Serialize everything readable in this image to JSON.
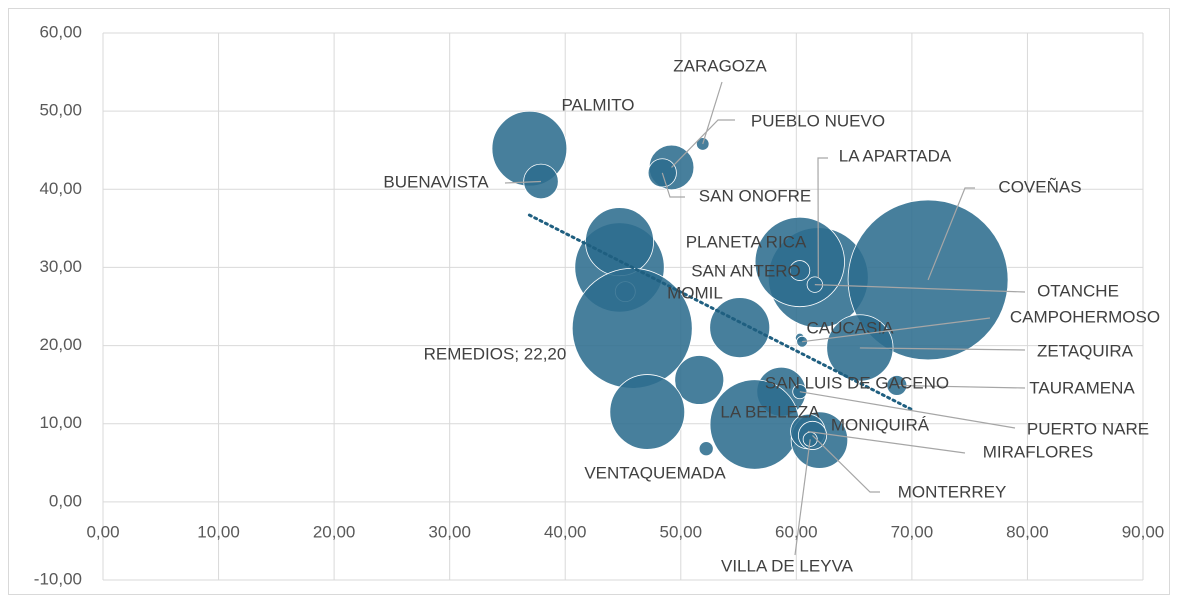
{
  "chart_data": {
    "type": "bubble",
    "color": "#2e6d8e",
    "x": [
      36.9,
      37.9,
      51.9,
      49.2,
      48.4,
      61.9,
      60.3,
      60.3,
      61.6,
      71.4,
      44.7,
      44.7,
      45.2,
      45.8,
      55.1,
      60.3,
      60.5,
      65.5,
      68.7,
      58.7,
      60.3,
      51.6,
      47.1,
      52.2,
      56.4,
      62.0,
      61.0,
      61.4,
      61.2
    ],
    "values": [
      45.2,
      41.0,
      45.8,
      42.8,
      42.1,
      28.7,
      30.7,
      29.6,
      27.8,
      28.4,
      30.0,
      33.3,
      26.9,
      22.2,
      22.3,
      21.0,
      20.5,
      19.7,
      14.9,
      14.1,
      14.1,
      15.6,
      11.5,
      6.8,
      9.9,
      7.9,
      9.0,
      8.5,
      8.0
    ],
    "sizes": [
      14,
      3,
      0.4,
      5,
      2,
      25,
      20,
      1,
      0.6,
      64,
      20,
      11.6,
      1,
      36,
      9,
      0.2,
      0.3,
      11,
      1,
      6,
      0.5,
      6,
      14,
      0.5,
      20,
      8,
      3,
      2,
      0.5
    ],
    "labels": [
      "PALMITO",
      "BUENAVISTA",
      "ZARAGOZA",
      "PUEBLO NUEVO",
      "SAN ONOFRE",
      "LA APARTADA",
      "PLANETA RICA",
      "SAN ANTERO",
      "OTANCHE",
      "COVEÑAS",
      null,
      null,
      "MOMIL",
      "REMEDIOS; 22,20",
      null,
      "CAUCASIA",
      "CAMPOHERMOSO",
      "ZETAQUIRA",
      "TAURAMENA",
      "SAN LUIS DE GACENO",
      "PUERTO NARE",
      null,
      null,
      "VENTAQUEMADA",
      "LA BELLEZA",
      "MONIQUIRÁ",
      "MIRAFLORES",
      "MONTERREY",
      "VILLA DE LEYVA"
    ],
    "trendline": {
      "x": [
        36.9,
        70.0
      ],
      "values": [
        36.7,
        11.8
      ],
      "color": "#1f5f80"
    },
    "xlim": [
      0,
      90
    ],
    "xticks": [
      {
        "value": 0,
        "label": "0,00"
      },
      {
        "value": 10,
        "label": "10,00"
      },
      {
        "value": 20,
        "label": "20,00"
      },
      {
        "value": 30,
        "label": "30,00"
      },
      {
        "value": 40,
        "label": "40,00"
      },
      {
        "value": 50,
        "label": "50,00"
      },
      {
        "value": 60,
        "label": "60,00"
      },
      {
        "value": 70,
        "label": "70,00"
      },
      {
        "value": 80,
        "label": "80,00"
      },
      {
        "value": 90,
        "label": "90,00"
      }
    ],
    "ylim": [
      -10,
      60
    ],
    "yticks": [
      {
        "value": -10,
        "label": "-10,00"
      },
      {
        "value": 0,
        "label": "0,00"
      },
      {
        "value": 10,
        "label": "10,00"
      },
      {
        "value": 20,
        "label": "20,00"
      },
      {
        "value": 30,
        "label": "30,00"
      },
      {
        "value": 40,
        "label": "40,00"
      },
      {
        "value": 50,
        "label": "50,00"
      },
      {
        "value": 60,
        "label": "60,00"
      }
    ],
    "grid": true
  }
}
